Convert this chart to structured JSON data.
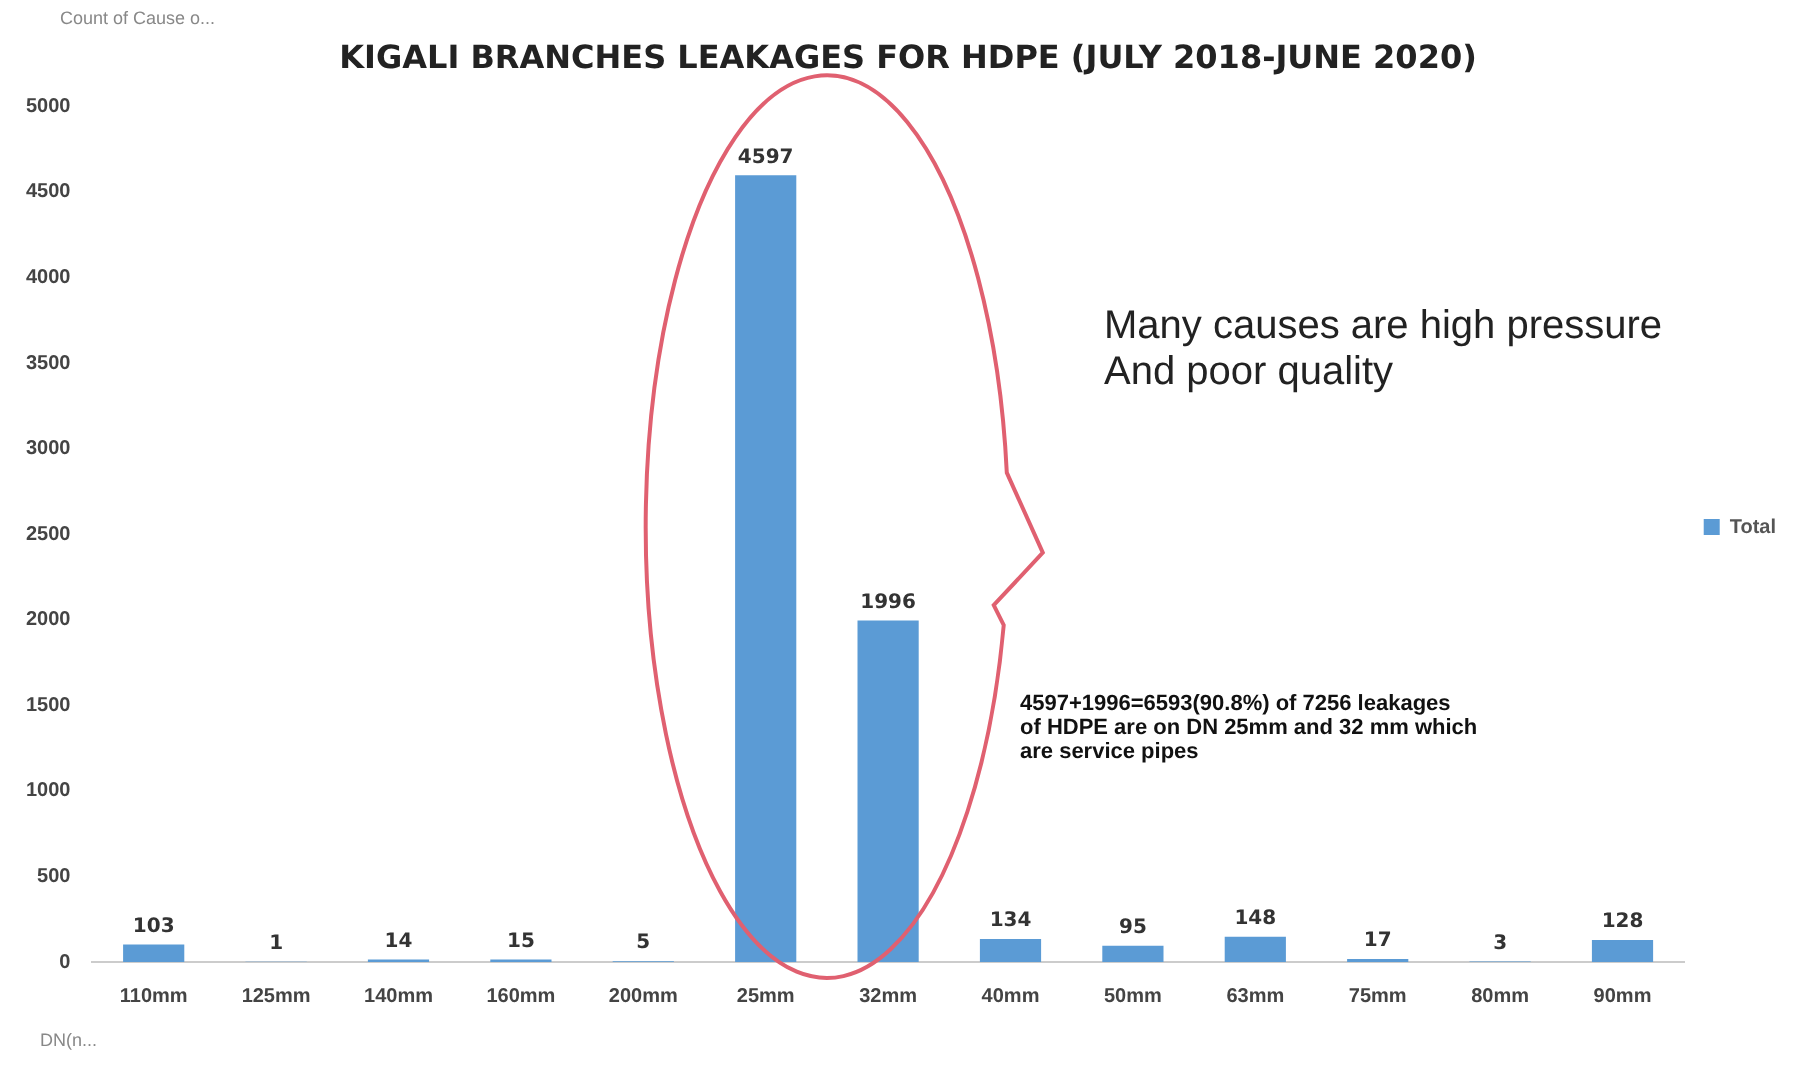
{
  "chart_data": {
    "type": "bar",
    "title": "KIGALI BRANCHES LEAKAGES FOR HDPE (JULY 2018-JUNE 2020)",
    "categories": [
      "110mm",
      "125mm",
      "140mm",
      "160mm",
      "200mm",
      "25mm",
      "32mm",
      "40mm",
      "50mm",
      "63mm",
      "75mm",
      "80mm",
      "90mm"
    ],
    "series": [
      {
        "name": "Total",
        "color": "#5b9bd5",
        "values": [
          103,
          1,
          14,
          15,
          5,
          4597,
          1996,
          134,
          95,
          148,
          17,
          3,
          128
        ]
      }
    ],
    "ylim": [
      0,
      5000
    ],
    "yticks": [
      0,
      500,
      1000,
      1500,
      2000,
      2500,
      3000,
      3500,
      4000,
      4500,
      5000
    ],
    "grid": false,
    "legend": "right",
    "data_labels": true,
    "annotations": [
      "Count of Cause o...",
      "Many causes are high pressure\nAnd poor quality",
      "4597+1996=6593(90.8%) of 7256 leakages\nof HDPE are on DN 25mm and 32 mm which\nare service pipes",
      "DN(n..."
    ]
  }
}
